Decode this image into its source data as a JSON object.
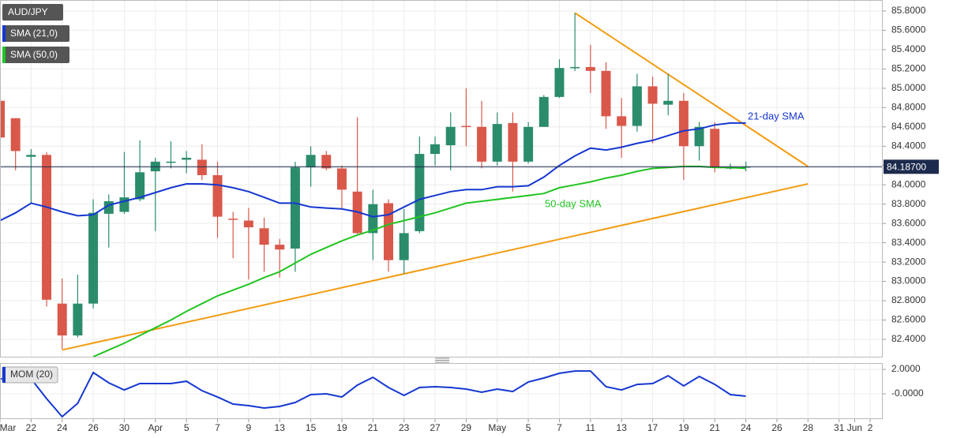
{
  "chart_data": [
    {
      "type": "candlestick",
      "symbol": "AUD/JPY",
      "categories": [
        "Mar",
        null,
        "22",
        null,
        "24",
        null,
        "26",
        null,
        "30",
        null,
        "Apr",
        null,
        "5",
        null,
        "7",
        null,
        "9",
        null,
        "13",
        null,
        "15",
        null,
        "19",
        null,
        "21",
        null,
        "23",
        null,
        "27",
        null,
        "29",
        null,
        "May",
        null,
        "5",
        null,
        "7",
        null,
        "11",
        null,
        "13",
        null,
        "17",
        null,
        "19",
        null,
        "21",
        null,
        "24",
        null,
        "26",
        null,
        "28",
        null,
        "31",
        "Jun",
        "2"
      ],
      "open": [
        84.87,
        84.69,
        84.29,
        84.31,
        82.77,
        82.44,
        82.77,
        83.7,
        83.72,
        83.85,
        84.14,
        84.23,
        84.26,
        84.26,
        84.1,
        83.65,
        83.63,
        83.55,
        83.38,
        83.34,
        84.18,
        84.31,
        84.17,
        83.93,
        83.5,
        83.81,
        83.22,
        83.52,
        84.32,
        84.41,
        84.61,
        84.6,
        84.24,
        84.64,
        84.24,
        84.6,
        84.91,
        85.21,
        85.22,
        85.18,
        84.71,
        84.61,
        85.02,
        84.83,
        84.87,
        84.4,
        84.58,
        84.18,
        84.19,
        null,
        null,
        null,
        null,
        null,
        null,
        null,
        null
      ],
      "high": [
        85.2,
        84.69,
        84.37,
        84.34,
        83.03,
        83.07,
        83.85,
        83.9,
        84.34,
        84.46,
        84.28,
        84.45,
        84.35,
        84.42,
        84.24,
        83.72,
        83.76,
        83.66,
        83.44,
        84.24,
        84.4,
        84.35,
        84.2,
        84.7,
        83.95,
        83.85,
        83.75,
        84.5,
        84.5,
        84.75,
        85.0,
        84.87,
        84.75,
        84.75,
        84.65,
        84.93,
        85.3,
        85.78,
        85.45,
        85.27,
        84.9,
        85.15,
        85.12,
        85.15,
        84.95,
        84.65,
        84.65,
        84.22,
        84.24,
        null,
        null,
        null,
        null,
        null,
        null,
        null,
        null
      ],
      "low": [
        84.4,
        84.15,
        83.8,
        82.74,
        82.3,
        82.42,
        82.72,
        83.35,
        83.7,
        83.83,
        83.52,
        84.17,
        84.12,
        84.05,
        83.45,
        83.24,
        83.02,
        83.1,
        83.04,
        83.1,
        83.98,
        84.15,
        83.75,
        83.49,
        83.22,
        83.1,
        83.08,
        83.5,
        84.2,
        84.15,
        84.4,
        84.17,
        84.2,
        83.93,
        84.22,
        84.6,
        84.9,
        85.18,
        84.95,
        84.58,
        84.28,
        84.55,
        84.43,
        84.72,
        84.05,
        84.25,
        84.13,
        84.16,
        84.14,
        null,
        null,
        null,
        null,
        null,
        null,
        null,
        null
      ],
      "close": [
        84.49,
        84.35,
        84.31,
        82.81,
        82.44,
        82.77,
        83.71,
        83.83,
        83.87,
        84.13,
        84.24,
        84.24,
        84.28,
        84.1,
        83.67,
        83.64,
        83.56,
        83.38,
        83.33,
        84.18,
        84.31,
        84.17,
        83.95,
        83.5,
        83.8,
        83.22,
        83.5,
        84.32,
        84.42,
        84.6,
        84.6,
        84.24,
        84.63,
        84.24,
        84.6,
        84.91,
        85.21,
        85.22,
        85.18,
        84.71,
        84.61,
        85.02,
        84.84,
        84.87,
        84.4,
        84.6,
        84.18,
        84.18,
        84.19,
        null,
        null,
        null,
        null,
        null,
        null,
        null,
        null
      ],
      "up_color": "#2b8c6c",
      "down_color": "#d9584a",
      "series": [
        {
          "name": "SMA (21,0)",
          "color": "#1537d1",
          "values": [
            83.63,
            83.71,
            83.81,
            83.77,
            83.72,
            83.68,
            83.69,
            83.79,
            83.83,
            83.87,
            83.92,
            83.97,
            84.01,
            84.01,
            84.0,
            83.97,
            83.93,
            83.87,
            83.81,
            83.81,
            83.77,
            83.76,
            83.75,
            83.72,
            83.67,
            83.69,
            83.77,
            83.85,
            83.89,
            83.93,
            83.95,
            83.95,
            83.98,
            83.98,
            83.99,
            84.08,
            84.2,
            84.3,
            84.38,
            84.36,
            84.39,
            84.43,
            84.46,
            84.51,
            84.56,
            84.58,
            84.62,
            84.64,
            84.64,
            null,
            null,
            null,
            null,
            null,
            null,
            null,
            null
          ]
        },
        {
          "name": "SMA (50,0)",
          "color": "#22c422",
          "values": [
            null,
            null,
            null,
            null,
            null,
            null,
            82.22,
            82.29,
            82.36,
            82.44,
            82.52,
            82.6,
            82.69,
            82.77,
            82.85,
            82.91,
            82.97,
            83.04,
            83.1,
            83.19,
            83.28,
            83.35,
            83.42,
            83.48,
            83.53,
            83.59,
            83.63,
            83.67,
            83.71,
            83.76,
            83.81,
            83.83,
            83.85,
            83.87,
            83.89,
            83.91,
            83.97,
            84.0,
            84.03,
            84.07,
            84.1,
            84.14,
            84.17,
            84.18,
            84.19,
            84.19,
            84.18,
            84.18,
            84.17,
            null,
            null,
            null,
            null,
            null,
            null,
            null,
            null
          ]
        }
      ],
      "trendlines": [
        {
          "color": "#f39c12",
          "points": [
            [
              4,
              82.29
            ],
            [
              52,
              84.01
            ]
          ]
        },
        {
          "color": "#f39c12",
          "points": [
            [
              37,
              85.78
            ],
            [
              52,
              84.19
            ]
          ]
        }
      ],
      "annotations": [
        {
          "text": "21-day SMA",
          "color": "#1537d1"
        },
        {
          "text": "50-day SMA",
          "color": "#22c422"
        }
      ],
      "last_price": {
        "value": 84.187,
        "label": "84.18700"
      },
      "ylim": [
        82.22,
        85.914
      ],
      "yticks": [
        {
          "value": 82.4,
          "label": "82.4000"
        },
        {
          "value": 82.6,
          "label": "82.6000"
        },
        {
          "value": 82.8,
          "label": "82.8000"
        },
        {
          "value": 83.0,
          "label": "83.0000"
        },
        {
          "value": 83.2,
          "label": "83.2000"
        },
        {
          "value": 83.4,
          "label": "83.4000"
        },
        {
          "value": 83.6,
          "label": "83.6000"
        },
        {
          "value": 83.8,
          "label": "83.8000"
        },
        {
          "value": 84.0,
          "label": "84.0000"
        },
        {
          "value": 84.2,
          "label": "84.2000"
        },
        {
          "value": 84.4,
          "label": "84.4000"
        },
        {
          "value": 84.6,
          "label": "84.6000"
        },
        {
          "value": 84.8,
          "label": "84.8000"
        },
        {
          "value": 85.0,
          "label": "85.0000"
        },
        {
          "value": 85.2,
          "label": "85.2000"
        },
        {
          "value": 85.4,
          "label": "85.4000"
        },
        {
          "value": 85.6,
          "label": "85.6000"
        },
        {
          "value": 85.8,
          "label": "85.8000"
        }
      ],
      "grid": true
    },
    {
      "type": "line",
      "series": [
        {
          "name": "MOM (20)",
          "color": "#1537d1",
          "values": [
            1.23,
            1.23,
            1.23,
            -0.39,
            -1.87,
            -0.77,
            1.74,
            0.9,
            0.32,
            0.84,
            0.84,
            0.84,
            1.03,
            0.26,
            -0.26,
            -0.84,
            -0.97,
            -1.16,
            -1.03,
            -0.71,
            -0.06,
            0.0,
            -0.26,
            0.71,
            1.35,
            0.52,
            -0.13,
            0.52,
            0.58,
            0.52,
            0.39,
            0.13,
            0.39,
            0.19,
            0.97,
            1.29,
            1.68,
            1.87,
            1.87,
            0.58,
            0.32,
            0.77,
            0.84,
            1.48,
            0.65,
            1.42,
            0.77,
            -0.06,
            -0.19,
            null,
            null,
            null,
            null,
            null,
            null,
            null,
            null
          ]
        }
      ],
      "ylim": [
        -2,
        2.52
      ],
      "yticks": [
        {
          "value": 2,
          "label": "2.0000"
        },
        {
          "value": 0,
          "label": "-0.0000"
        }
      ],
      "grid": true
    }
  ]
}
